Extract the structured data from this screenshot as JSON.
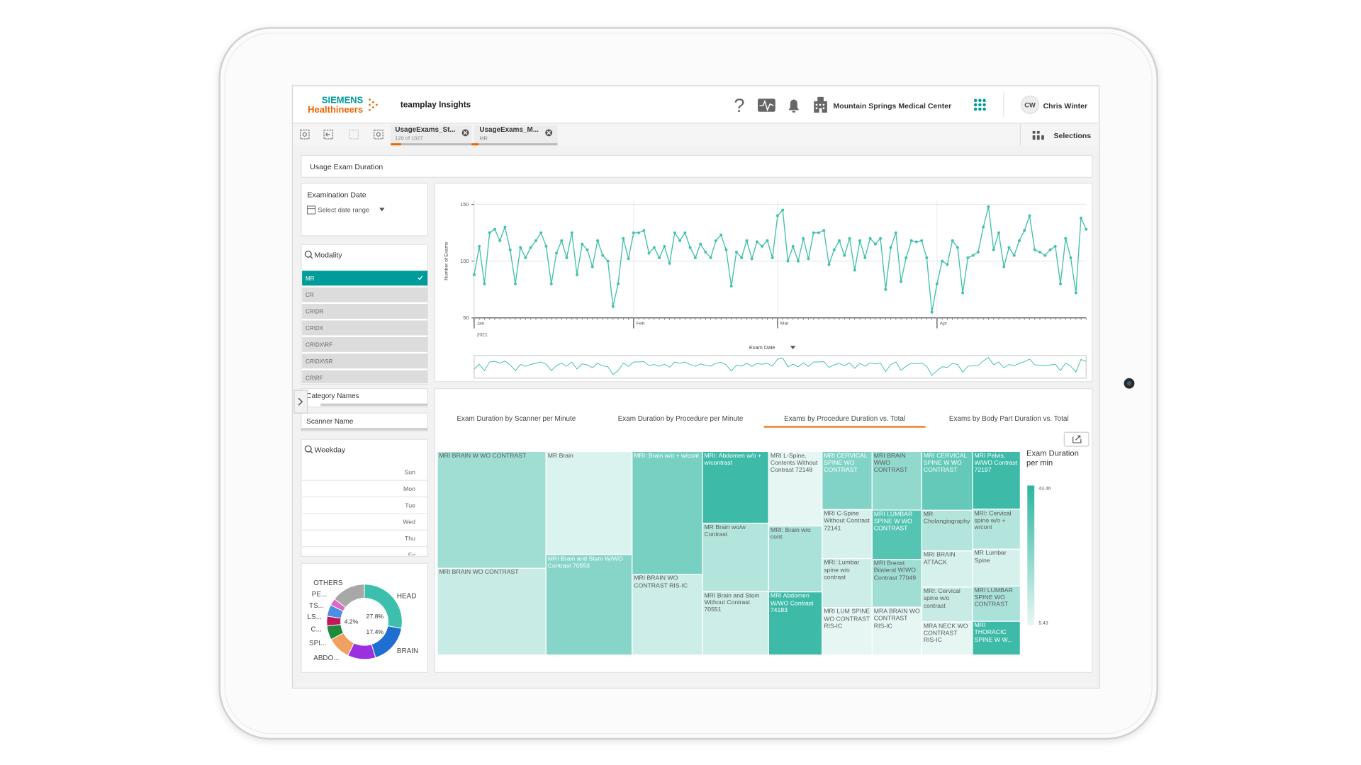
{
  "header": {
    "brand_top": "SIEMENS",
    "brand_bottom": "Healthineers",
    "app": "teamplay Insights",
    "help": "?",
    "site": "Mountain Springs Medical Center",
    "initials": "CW",
    "user": "Chris Winter"
  },
  "tabs": [
    {
      "title": "UsageExams_St...",
      "sub": "120 of 1027"
    },
    {
      "title": "UsageExams_M...",
      "sub": "MR"
    }
  ],
  "selections": "Selections",
  "sheet_title": "Usage Exam Duration",
  "filters": {
    "date": {
      "title": "Examination Date",
      "placeholder": "Select date range"
    },
    "modality": {
      "title": "Modality",
      "selected": 0,
      "items": [
        "MR",
        "CR",
        "CR\\DR",
        "CR\\DX",
        "CR\\DX\\RF",
        "CR\\DX\\SR",
        "CR\\RF"
      ]
    },
    "category": "Category Names",
    "scanner": "Scanner Name",
    "weekday": {
      "title": "Weekday",
      "items": [
        "Sun",
        "Mon",
        "Tue",
        "Wed",
        "Thu",
        "Fri"
      ]
    }
  },
  "chart_tabs": {
    "active": 2,
    "items": [
      "Exam Duration by Scanner per Minute",
      "Exam Duration by Procedure per Minute",
      "Exams by Procedure Duration vs. Total",
      "Exams by Body Part Duration vs. Total"
    ]
  },
  "chart_data": [
    {
      "type": "line",
      "ylabel": "Number of Exams",
      "xlabel": "Exam Date",
      "year_label": "2021",
      "color": "#43c1ae",
      "ylim": [
        50,
        150
      ],
      "yticks": [
        50,
        100,
        150
      ],
      "grid": true,
      "categories": [
        "Jan",
        null,
        null,
        null,
        null,
        null,
        null,
        null,
        null,
        null,
        null,
        null,
        null,
        null,
        null,
        null,
        null,
        null,
        null,
        null,
        null,
        null,
        null,
        null,
        null,
        null,
        null,
        null,
        null,
        null,
        null,
        "Feb",
        null,
        null,
        null,
        null,
        null,
        null,
        null,
        null,
        null,
        null,
        null,
        null,
        null,
        null,
        null,
        null,
        null,
        null,
        null,
        null,
        null,
        null,
        null,
        null,
        null,
        null,
        null,
        "Mar",
        null,
        null,
        null,
        null,
        null,
        null,
        null,
        null,
        null,
        null,
        null,
        null,
        null,
        null,
        null,
        null,
        null,
        null,
        null,
        null,
        null,
        null,
        null,
        null,
        null,
        null,
        null,
        null,
        null,
        null,
        "Apr",
        null,
        null,
        null,
        null,
        null,
        null,
        null,
        null,
        null,
        null,
        null,
        null,
        null,
        null,
        null,
        null,
        null,
        null,
        null,
        null,
        null,
        null,
        null,
        null,
        null,
        null,
        null,
        null,
        null
      ],
      "values": [
        88,
        113,
        80,
        125,
        128,
        118,
        130,
        110,
        80,
        112,
        103,
        112,
        118,
        125,
        113,
        80,
        107,
        118,
        103,
        125,
        88,
        115,
        110,
        95,
        118,
        105,
        100,
        60,
        80,
        120,
        102,
        125,
        125,
        127,
        107,
        112,
        103,
        113,
        98,
        125,
        118,
        125,
        112,
        103,
        115,
        108,
        103,
        118,
        123,
        110,
        78,
        108,
        103,
        118,
        102,
        117,
        113,
        118,
        103,
        140,
        145,
        100,
        113,
        100,
        120,
        102,
        125,
        125,
        127,
        97,
        110,
        118,
        105,
        120,
        92,
        118,
        103,
        120,
        115,
        120,
        75,
        112,
        125,
        82,
        103,
        118,
        117,
        118,
        103,
        55,
        80,
        100,
        97,
        118,
        112,
        72,
        103,
        105,
        108,
        130,
        148,
        110,
        125,
        95,
        112,
        105,
        118,
        127,
        140,
        110,
        108,
        105,
        110,
        113,
        80,
        120,
        103,
        72,
        138,
        128
      ]
    },
    {
      "type": "treemap",
      "legend_title": "Exam Duration per min",
      "color_range": [
        5.43,
        43.46
      ],
      "colors": [
        "#e8f7f4",
        "#2cb5a0"
      ],
      "columns": [
        [
          {
            "label": "MRI BRAIN W WO CONTRAST",
            "size": 166,
            "duration": 20
          },
          {
            "label": "MRI BRAIN WO CONTRAST",
            "size": 123,
            "duration": 12
          }
        ],
        [
          {
            "label": "MR Brain",
            "size": 116,
            "duration": 8
          },
          {
            "label": "MRI Brain and Stem W/WO Contrast 70553",
            "size": 113,
            "duration": 25
          }
        ],
        [
          {
            "label": "MRI: Brain w/o + w/cont",
            "size": 113,
            "duration": 28
          },
          {
            "label": "MRI BRAIN WO CONTRAST RIS-IC",
            "size": 74,
            "duration": 11
          }
        ],
        [
          {
            "label": "MRI: Abdomen w/o + w/contrast",
            "size": 62,
            "duration": 40
          },
          {
            "label": "MR Brain wo/w Contrast",
            "size": 59,
            "duration": 16
          },
          {
            "label": "MRI Brain and Stem Without Contrast 70551",
            "size": 55,
            "duration": 11
          }
        ],
        [
          {
            "label": "MRI L-Spine, Contents Without Contrast 72148",
            "size": 52,
            "duration": 6
          },
          {
            "label": "MRI: Brain w/o cont",
            "size": 46,
            "duration": 18
          },
          {
            "label": "MRI Abdomen W/WO Contrast 74183",
            "size": 44,
            "duration": 40
          }
        ],
        [
          {
            "label": "MRI CERVICAL SPINE WO CONTRAST",
            "size": 38,
            "duration": 26
          },
          {
            "label": "MRI C-Spine Without Contrast 72141",
            "size": 32,
            "duration": 9
          },
          {
            "label": "MRI: Lumbar spine w/o contrast",
            "size": 32,
            "duration": 11
          },
          {
            "label": "MRI LUM SPINE WO CONTRAST RIS-IC",
            "size": 31,
            "duration": 6
          }
        ],
        [
          {
            "label": "MRI BRAIN WWO CONTRAST",
            "size": 38,
            "duration": 23
          },
          {
            "label": "MRI LUMBAR SPINE W WO CONTRAST",
            "size": 32,
            "duration": 35
          },
          {
            "label": "MRI Breast Bilateral W/WO Contrast 77049",
            "size": 31,
            "duration": 20
          },
          {
            "label": "MRA BRAIN WO CONTRAST RIS-IC",
            "size": 31,
            "duration": 6
          }
        ],
        [
          {
            "label": "MRI CERVICAL SPINE W WO CONTRAST",
            "size": 39,
            "duration": 32
          },
          {
            "label": "MR Cholangiography",
            "size": 27,
            "duration": 16
          },
          {
            "label": "MRI BRAIN ATTACK",
            "size": 24,
            "duration": 9
          },
          {
            "label": "MRI: Cervical spine w/o contrast",
            "size": 23,
            "duration": 12
          },
          {
            "label": "MRA NECK WO CONTRAST RIS-IC",
            "size": 22,
            "duration": 6
          }
        ],
        [
          {
            "label": "MRI Pelvis, W/WO Contrast 72197",
            "size": 36,
            "duration": 40
          },
          {
            "label": "MRI: Cervical spine w/o + w/cont",
            "size": 25,
            "duration": 16
          },
          {
            "label": "MR Lumbar Spine",
            "size": 23,
            "duration": 9
          },
          {
            "label": "MRI LUMBAR SPINE WO CONTRAST",
            "size": 22,
            "duration": 18
          },
          {
            "label": "MRI THORACIC SPINE W W...",
            "size": 21,
            "duration": 40
          }
        ]
      ]
    },
    {
      "type": "pie",
      "categories": [
        "HEAD",
        "BRAIN",
        "ABDO...",
        "SPI...",
        "C...",
        "LS...",
        "TS...",
        "PE...",
        "OTHERS"
      ],
      "values": [
        27.8,
        17.4,
        12,
        10,
        6,
        4.2,
        5,
        3,
        14.6
      ],
      "value_labels": [
        "27.8%",
        "17.4%",
        null,
        null,
        null,
        "4.2%",
        null,
        null,
        null
      ],
      "colors": [
        "#3cc0ad",
        "#1e6fd0",
        "#9b30e0",
        "#f0a060",
        "#1b8a3a",
        "#c2185b",
        "#4a90e2",
        "#e066c8",
        "#a8a8a8"
      ]
    }
  ]
}
